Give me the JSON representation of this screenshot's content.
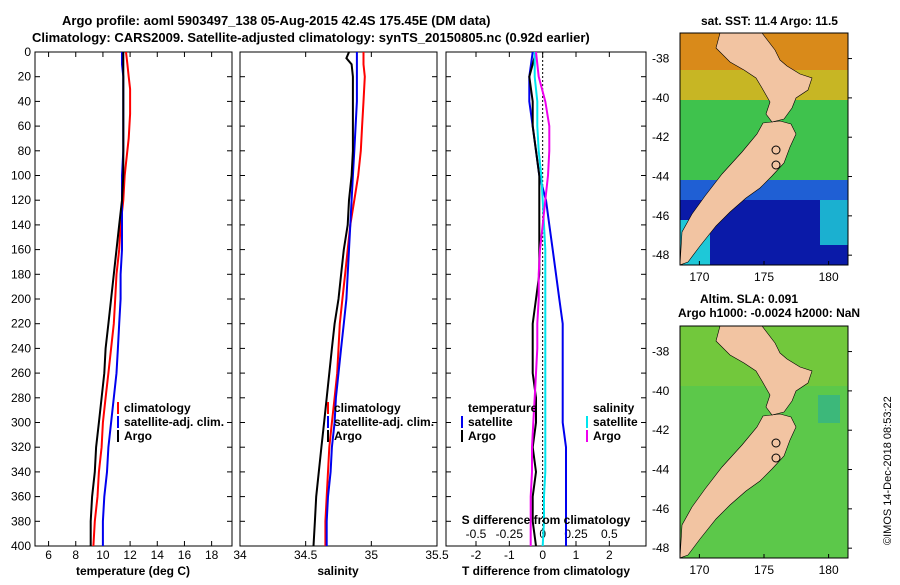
{
  "title_line1": "Argo profile: aoml 5903497_138 05-Aug-2015 42.4S 175.45E (DM data)",
  "title_line2": "Climatology: CARS2009. Satellite-adjusted climatology: synTS_20150805.nc (0.92d earlier)",
  "credit": "©IMOS 14-Dec-2018 08:53:22",
  "colors": {
    "climatology": "#ff0000",
    "satellite": "#0000ee",
    "argo": "#000000",
    "s_satellite": "#00e5ee",
    "s_argo": "#ee00ee",
    "land": "#f2c4a2"
  },
  "chart_data": [
    {
      "type": "line",
      "title": "",
      "xlabel": "temperature (deg C)",
      "ylabel": "depth",
      "xlim": [
        5,
        19.5
      ],
      "ylim": [
        400,
        0
      ],
      "xticks": [
        "6",
        "8",
        "10",
        "12",
        "14",
        "16",
        "18"
      ],
      "xtick_values": [
        6,
        8,
        10,
        12,
        14,
        16,
        18
      ],
      "yticks": [
        "0",
        "20",
        "40",
        "60",
        "80",
        "100",
        "120",
        "140",
        "160",
        "180",
        "200",
        "220",
        "240",
        "260",
        "280",
        "300",
        "320",
        "340",
        "360",
        "380",
        "400"
      ],
      "legend": [
        "climatology",
        "satellite-adj. clim.",
        "Argo"
      ],
      "series": [
        {
          "name": "climatology",
          "depth": [
            0,
            10,
            20,
            30,
            50,
            70,
            90,
            100,
            120,
            140,
            160,
            180,
            200,
            220,
            240,
            260,
            280,
            300,
            320,
            340,
            360,
            380,
            400
          ],
          "values": [
            11.7,
            11.8,
            11.9,
            12.0,
            12.0,
            11.9,
            11.7,
            11.6,
            11.5,
            11.3,
            11.2,
            11.0,
            10.9,
            10.8,
            10.6,
            10.4,
            10.2,
            10.0,
            9.9,
            9.7,
            9.6,
            9.4,
            9.3
          ]
        },
        {
          "name": "satellite-adj. clim.",
          "depth": [
            0,
            10,
            20,
            40,
            60,
            80,
            100,
            120,
            140,
            160,
            180,
            200,
            220,
            240,
            260,
            280,
            300,
            320,
            340,
            360,
            380,
            400
          ],
          "values": [
            11.4,
            11.4,
            11.5,
            11.5,
            11.5,
            11.5,
            11.4,
            11.4,
            11.4,
            11.4,
            11.3,
            11.3,
            11.2,
            11.1,
            11.0,
            10.8,
            10.6,
            10.4,
            10.3,
            10.1,
            10.0,
            10.0
          ]
        },
        {
          "name": "Argo",
          "depth": [
            0,
            10,
            20,
            40,
            60,
            80,
            100,
            120,
            140,
            160,
            180,
            200,
            220,
            240,
            260,
            280,
            300,
            320,
            340,
            360,
            380,
            400
          ],
          "values": [
            11.5,
            11.5,
            11.5,
            11.5,
            11.5,
            11.5,
            11.5,
            11.4,
            11.2,
            11.0,
            10.8,
            10.6,
            10.4,
            10.2,
            10.1,
            9.9,
            9.7,
            9.5,
            9.4,
            9.2,
            9.1,
            9.1
          ]
        }
      ]
    },
    {
      "type": "line",
      "title": "",
      "xlabel": "salinity",
      "ylabel": "depth",
      "xlim": [
        34,
        35.5
      ],
      "ylim": [
        400,
        0
      ],
      "xticks": [
        "34",
        "34.5",
        "35",
        "35.5"
      ],
      "xtick_values": [
        34,
        34.5,
        35,
        35.5
      ],
      "legend": [
        "climatology",
        "satellite-adj. clim.",
        "Argo"
      ],
      "series": [
        {
          "name": "climatology",
          "depth": [
            0,
            10,
            20,
            40,
            60,
            80,
            100,
            120,
            140,
            160,
            180,
            200,
            220,
            240,
            260,
            280,
            300,
            320,
            340,
            360,
            380,
            400
          ],
          "values": [
            34.94,
            34.94,
            34.95,
            34.94,
            34.93,
            34.92,
            34.9,
            34.87,
            34.84,
            34.82,
            34.8,
            34.78,
            34.76,
            34.75,
            34.74,
            34.72,
            34.7,
            34.68,
            34.67,
            34.66,
            34.65,
            34.65
          ]
        },
        {
          "name": "satellite-adj. clim.",
          "depth": [
            0,
            10,
            20,
            40,
            60,
            80,
            100,
            120,
            140,
            160,
            180,
            200,
            220,
            240,
            260,
            280,
            300,
            320,
            340,
            360,
            380,
            400
          ],
          "values": [
            34.89,
            34.89,
            34.89,
            34.89,
            34.88,
            34.87,
            34.86,
            34.85,
            34.84,
            34.83,
            34.82,
            34.81,
            34.79,
            34.77,
            34.75,
            34.73,
            34.72,
            34.7,
            34.69,
            34.67,
            34.66,
            34.66
          ]
        },
        {
          "name": "Argo",
          "depth": [
            0,
            5,
            10,
            20,
            40,
            60,
            80,
            100,
            120,
            140,
            160,
            180,
            200,
            220,
            240,
            260,
            280,
            300,
            320,
            340,
            360,
            380,
            400
          ],
          "values": [
            34.83,
            34.81,
            34.85,
            34.86,
            34.86,
            34.86,
            34.86,
            34.85,
            34.83,
            34.82,
            34.79,
            34.77,
            34.75,
            34.72,
            34.7,
            34.68,
            34.66,
            34.64,
            34.62,
            34.6,
            34.58,
            34.57,
            34.56
          ]
        }
      ]
    },
    {
      "type": "line",
      "title": "",
      "xlabel": "T difference from climatology",
      "secondary_xlabel": "S difference from climatology",
      "ylabel": "depth",
      "xlim": [
        -2.9,
        3.1
      ],
      "ylim": [
        400,
        0
      ],
      "xticks": [
        "-2",
        "-1",
        "0",
        "1",
        "2"
      ],
      "xtick_values": [
        -2,
        -1,
        0,
        1,
        2
      ],
      "s_xticks": [
        "-0.5",
        "-0.25",
        "0",
        "0.25",
        "0.5"
      ],
      "s_xtick_values": [
        -0.5,
        -0.25,
        0,
        0.25,
        0.5
      ],
      "legend_temperature_title": "temperature",
      "legend_salinity_title": "salinity",
      "legend_temperature": [
        "satellite",
        "Argo"
      ],
      "legend_salinity": [
        "satellite",
        "Argo"
      ],
      "series": [
        {
          "name": "T satellite",
          "axis": "T",
          "depth": [
            0,
            20,
            40,
            60,
            80,
            100,
            120,
            140,
            160,
            180,
            200,
            220,
            240,
            260,
            280,
            300,
            320,
            340,
            360,
            380,
            400
          ],
          "values": [
            -0.3,
            -0.4,
            -0.4,
            -0.3,
            -0.2,
            -0.1,
            0.1,
            0.2,
            0.3,
            0.4,
            0.5,
            0.6,
            0.6,
            0.6,
            0.6,
            0.6,
            0.7,
            0.7,
            0.7,
            0.7,
            0.7
          ]
        },
        {
          "name": "T Argo",
          "axis": "T",
          "depth": [
            0,
            20,
            40,
            60,
            80,
            100,
            120,
            140,
            160,
            180,
            200,
            220,
            240,
            260,
            280,
            300,
            320,
            340,
            360,
            380,
            400
          ],
          "values": [
            -0.2,
            -0.4,
            -0.3,
            -0.3,
            -0.2,
            -0.1,
            -0.1,
            -0.1,
            -0.1,
            -0.1,
            -0.2,
            -0.3,
            -0.3,
            -0.3,
            -0.2,
            -0.2,
            -0.3,
            -0.2,
            -0.3,
            -0.3,
            -0.2
          ]
        },
        {
          "name": "S satellite",
          "axis": "S",
          "depth": [
            0,
            20,
            40,
            60,
            80,
            100,
            120,
            140,
            160,
            180,
            200,
            220,
            240,
            260,
            280,
            300,
            320,
            340,
            360,
            380,
            400
          ],
          "values": [
            -0.06,
            -0.06,
            -0.04,
            -0.04,
            -0.03,
            -0.01,
            0.0,
            0.01,
            0.02,
            0.02,
            0.02,
            0.02,
            0.02,
            0.02,
            0.02,
            0.02,
            0.02,
            0.02,
            0.01,
            0.01,
            0.0
          ]
        },
        {
          "name": "S Argo",
          "axis": "S",
          "depth": [
            0,
            20,
            40,
            60,
            80,
            100,
            120,
            140,
            160,
            180,
            200,
            220,
            240,
            260,
            280,
            300,
            320,
            340,
            360,
            380,
            400
          ],
          "values": [
            -0.05,
            -0.03,
            0.02,
            0.05,
            0.05,
            0.04,
            0.02,
            0.0,
            -0.02,
            -0.03,
            -0.03,
            -0.04,
            -0.04,
            -0.05,
            -0.06,
            -0.07,
            -0.08,
            -0.08,
            -0.09,
            -0.09,
            -0.09
          ]
        }
      ]
    },
    {
      "type": "heatmap",
      "title": "sat. SST: 11.4 Argo: 11.5",
      "xlim": [
        168.5,
        181.5
      ],
      "ylim": [
        -48.5,
        -36.7
      ],
      "xticks": [
        "170",
        "175",
        "180"
      ],
      "xtick_values": [
        170,
        175,
        180
      ],
      "yticks": [
        "-38",
        "-40",
        "-42",
        "-44",
        "-46",
        "-48"
      ],
      "ytick_values": [
        -38,
        -40,
        -42,
        -44,
        -46,
        -48
      ],
      "argo_position": [
        175.45,
        -42.4
      ]
    },
    {
      "type": "heatmap",
      "title_line1": "Altim. SLA: 0.091",
      "title_line2": "Argo h1000: -0.0024 h2000: NaN",
      "xlim": [
        168.5,
        181.5
      ],
      "ylim": [
        -48.5,
        -36.7
      ],
      "xticks": [
        "170",
        "175",
        "180"
      ],
      "xtick_values": [
        170,
        175,
        180
      ],
      "yticks": [
        "-38",
        "-40",
        "-42",
        "-44",
        "-46",
        "-48"
      ],
      "ytick_values": [
        -38,
        -40,
        -42,
        -44,
        -46,
        -48
      ],
      "argo_position": [
        175.45,
        -42.4
      ]
    }
  ]
}
